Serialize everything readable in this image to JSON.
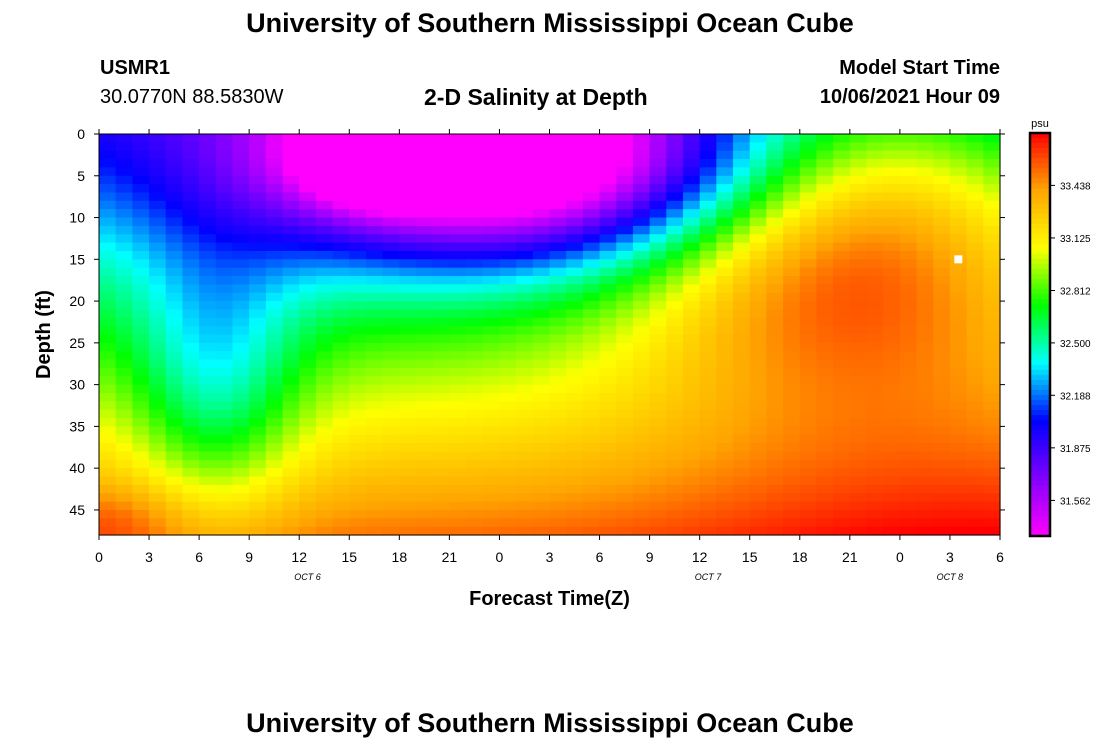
{
  "header": {
    "title": "University of Southern Mississippi Ocean Cube",
    "station_id": "USMR1",
    "coordinates": "30.0770N  88.5830W",
    "plot_title": "2-D Salinity at Depth",
    "model_start_label": "Model Start Time",
    "model_start_value": "10/06/2021 Hour 09"
  },
  "footer": {
    "title": "University of Southern Mississippi Ocean Cube"
  },
  "colors": {
    "colormap": [
      "#ff00ff",
      "#8000ff",
      "#0000ff",
      "#00ffff",
      "#00ff00",
      "#ffff00",
      "#ffa500",
      "#ff0000"
    ],
    "marker": "#ffffff"
  },
  "chart_data": {
    "type": "heatmap",
    "title": "2-D Salinity at Depth",
    "xlabel": "Forecast Time(Z)",
    "ylabel": "Depth (ft)",
    "x_ticks": [
      "0",
      "3",
      "6",
      "9",
      "12",
      "15",
      "18",
      "21",
      "0",
      "3",
      "6",
      "9",
      "12",
      "15",
      "18",
      "21",
      "0",
      "3",
      "6"
    ],
    "date_labels": [
      {
        "label": "OCT 6",
        "hour_index": 12.5
      },
      {
        "label": "OCT 7",
        "hour_index": 36.5
      },
      {
        "label": "OCT 8",
        "hour_index": 51
      }
    ],
    "xlim_hours": [
      0,
      54
    ],
    "y_ticks": [
      0,
      5,
      10,
      15,
      20,
      25,
      30,
      35,
      40,
      45
    ],
    "ylim": [
      0,
      48
    ],
    "colorbar": {
      "units": "psu",
      "ticks": [
        "33.438",
        "33.125",
        "32.812",
        "32.500",
        "32.188",
        "31.875",
        "31.562"
      ],
      "min": 31.35,
      "max": 33.75
    },
    "marker": {
      "hour": 51.5,
      "depth": 15
    }
  }
}
